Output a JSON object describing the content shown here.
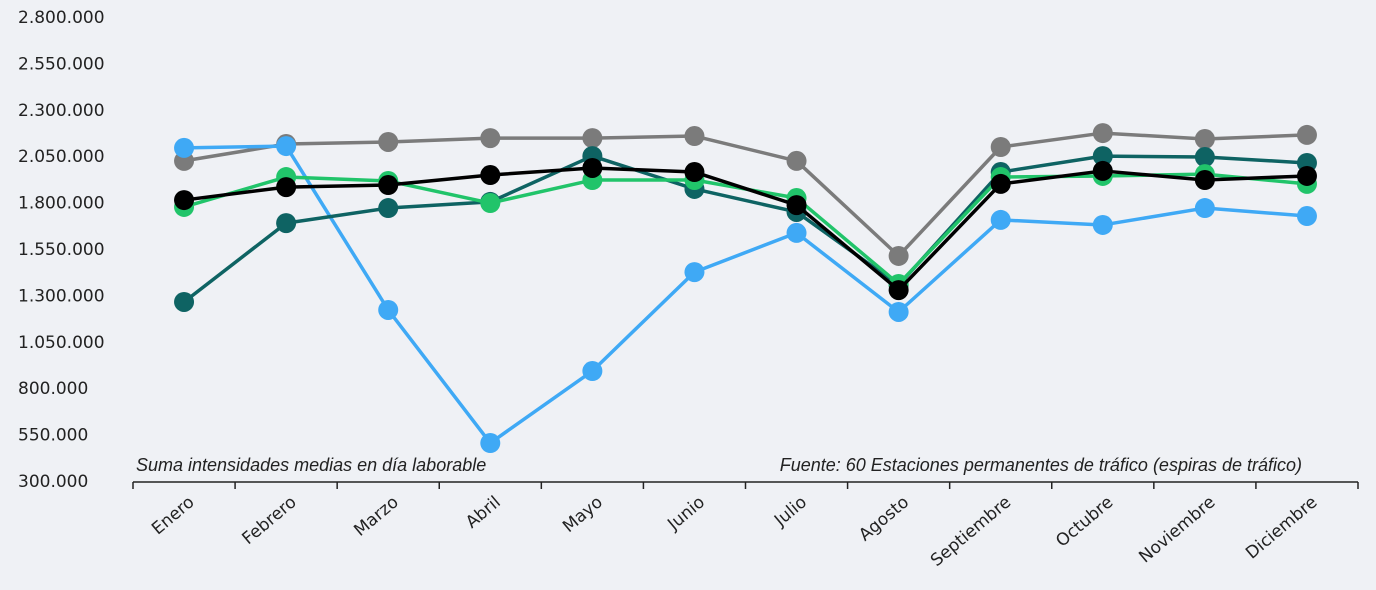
{
  "chart_data": {
    "type": "line",
    "categories": [
      "Enero",
      "Febrero",
      "Marzo",
      "Abril",
      "Mayo",
      "Junio",
      "Julio",
      "Agosto",
      "Septiembre",
      "Octubre",
      "Noviembre",
      "Diciembre"
    ],
    "annotations": [
      "Suma intensidades medias en día laborable",
      "Fuente: 60 Estaciones permanentes de tráfico (espiras de tráfico)"
    ],
    "ylim": [
      300000,
      2800000
    ],
    "yticks": [
      {
        "value": 300000,
        "label": "300.000"
      },
      {
        "value": 550000,
        "label": "550.000"
      },
      {
        "value": 800000,
        "label": "800.000"
      },
      {
        "value": 1050000,
        "label": "1.050.000"
      },
      {
        "value": 1300000,
        "label": "1.300.000"
      },
      {
        "value": 1550000,
        "label": "1.550.000"
      },
      {
        "value": 1800000,
        "label": "1.800.000"
      },
      {
        "value": 2050000,
        "label": "2.050.000"
      },
      {
        "value": 2300000,
        "label": "2.300.000"
      },
      {
        "value": 2550000,
        "label": "2.550.000"
      },
      {
        "value": 2800000,
        "label": "2.800.000"
      }
    ],
    "grid": false,
    "series": [
      {
        "color": "#7b7b7b",
        "values": [
          2030000,
          2121000,
          2132000,
          2153000,
          2153000,
          2164000,
          2030000,
          1518000,
          2105000,
          2180000,
          2148000,
          2170000
        ]
      },
      {
        "color": "#3fa9f5",
        "values": [
          2100000,
          2110000,
          1227000,
          510000,
          898000,
          1431000,
          1642000,
          1216000,
          1712000,
          1685000,
          1776000,
          1733000
        ]
      },
      {
        "color": "#0e6363",
        "values": [
          1270000,
          1695000,
          1776000,
          1809000,
          2056000,
          1879000,
          1755000,
          1361000,
          1970000,
          2056000,
          2051000,
          2019000
        ]
      },
      {
        "color": "#21c46a",
        "values": [
          1782000,
          1943000,
          1922000,
          1803000,
          1927000,
          1927000,
          1830000,
          1367000,
          1943000,
          1949000,
          1959000,
          1906000
        ]
      },
      {
        "color": "#000000",
        "values": [
          1819000,
          1889000,
          1900000,
          1954000,
          1992000,
          1970000,
          1792000,
          1334000,
          1906000,
          1976000,
          1927000,
          1949000
        ]
      }
    ]
  }
}
